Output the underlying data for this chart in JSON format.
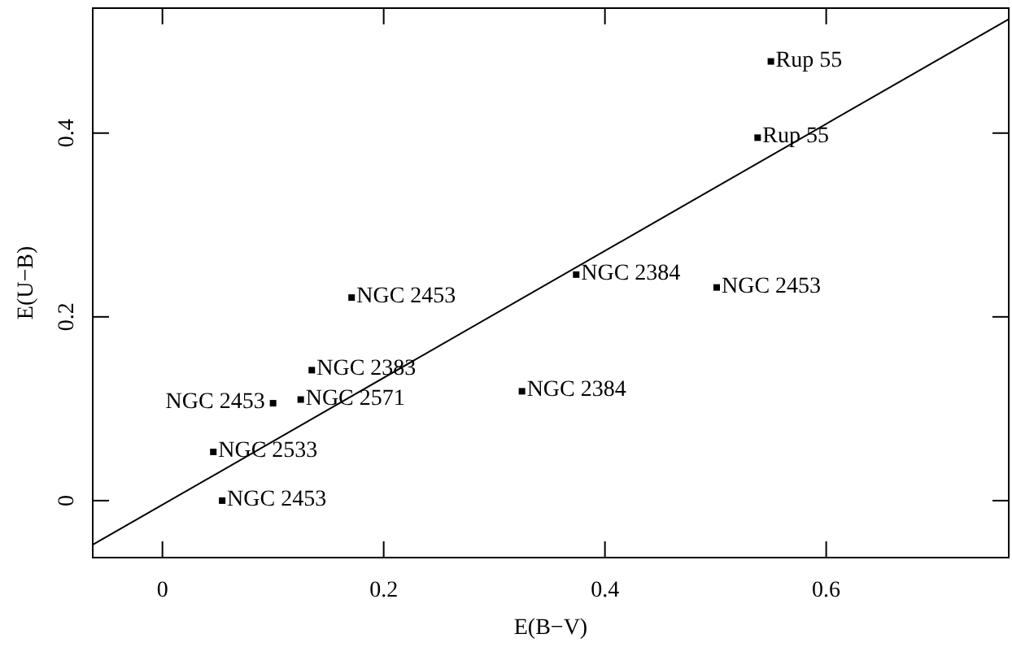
{
  "chart_data": {
    "type": "scatter",
    "xlabel": "E(B−V)",
    "ylabel": "E(U−B)",
    "marker": "square",
    "xlim": [
      -0.063,
      0.765
    ],
    "ylim": [
      -0.062,
      0.536
    ],
    "xticks": [
      0,
      0.2,
      0.4,
      0.6
    ],
    "yticks": [
      0,
      0.2,
      0.4
    ],
    "grid": false,
    "series": [
      {
        "color": "#000000",
        "x": [
          0.054,
          0.046,
          0.1,
          0.125,
          0.135,
          0.171,
          0.325,
          0.374,
          0.501,
          0.538,
          0.55
        ],
        "values": [
          0.0,
          0.053,
          0.106,
          0.11,
          0.142,
          0.221,
          0.119,
          0.246,
          0.232,
          0.395,
          0.478
        ]
      },
      {
        "type": "line",
        "color": "#000000",
        "line_style": "solid",
        "marker": "none",
        "x": [
          -0.063,
          0.765
        ],
        "values": [
          -0.048,
          0.524
        ]
      }
    ],
    "annotations": [
      {
        "text": "NGC 2453",
        "x": 0.054,
        "y": 0.0
      },
      {
        "text": "NGC 2533",
        "x": 0.046,
        "y": 0.053
      },
      {
        "text": "NGC 2453",
        "x": 0.1,
        "y": 0.106
      },
      {
        "text": "NGC 2571",
        "x": 0.125,
        "y": 0.11
      },
      {
        "text": "NGC 2383",
        "x": 0.135,
        "y": 0.142
      },
      {
        "text": "NGC 2453",
        "x": 0.171,
        "y": 0.221
      },
      {
        "text": "NGC 2384",
        "x": 0.325,
        "y": 0.119
      },
      {
        "text": "NGC 2384",
        "x": 0.374,
        "y": 0.246
      },
      {
        "text": "NGC 2453",
        "x": 0.501,
        "y": 0.232
      },
      {
        "text": "Rup 55",
        "x": 0.538,
        "y": 0.395
      },
      {
        "text": "Rup 55",
        "x": 0.55,
        "y": 0.478
      }
    ]
  }
}
